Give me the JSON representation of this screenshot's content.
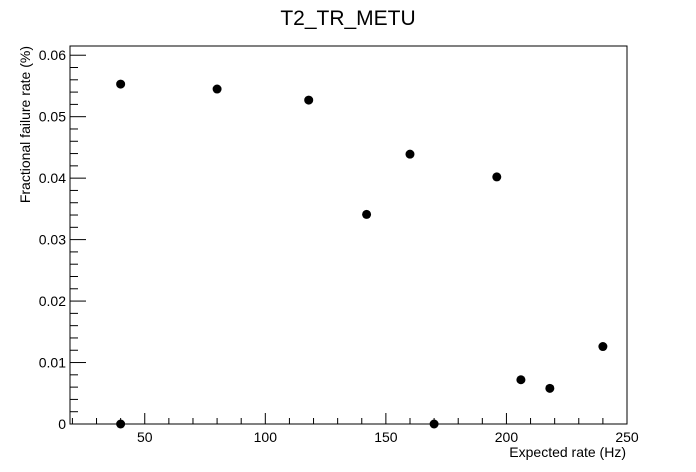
{
  "chart_data": {
    "type": "scatter",
    "title": "T2_TR_METU",
    "xlabel": "Expected rate (Hz)",
    "ylabel": "Fractional failure rate (%)",
    "xlim": [
      19,
      250
    ],
    "ylim": [
      0,
      0.0615
    ],
    "x_ticks": [
      50,
      100,
      150,
      200,
      250
    ],
    "x_tick_labels": [
      "50",
      "100",
      "150",
      "200",
      "250"
    ],
    "y_ticks": [
      0,
      0.01,
      0.02,
      0.03,
      0.04,
      0.05,
      0.06
    ],
    "y_tick_labels": [
      "0",
      "0.01",
      "0.02",
      "0.03",
      "0.04",
      "0.05",
      "0.06"
    ],
    "grid": false,
    "marker_color": "#000000",
    "points": [
      {
        "x": 40,
        "y": 0.0553
      },
      {
        "x": 80,
        "y": 0.0545
      },
      {
        "x": 118,
        "y": 0.0527
      },
      {
        "x": 142,
        "y": 0.0341
      },
      {
        "x": 160,
        "y": 0.0439
      },
      {
        "x": 196,
        "y": 0.0402
      },
      {
        "x": 206,
        "y": 0.0072
      },
      {
        "x": 218,
        "y": 0.0058
      },
      {
        "x": 240,
        "y": 0.0126
      },
      {
        "x": 40,
        "y": 0.0
      },
      {
        "x": 170,
        "y": 0.0
      }
    ]
  }
}
